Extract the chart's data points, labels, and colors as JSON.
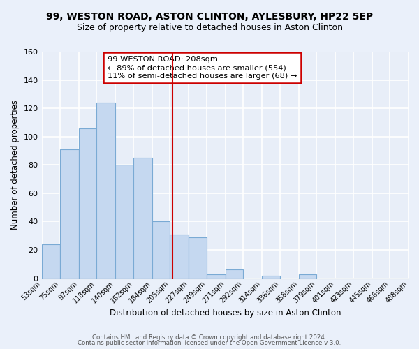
{
  "title": "99, WESTON ROAD, ASTON CLINTON, AYLESBURY, HP22 5EP",
  "subtitle": "Size of property relative to detached houses in Aston Clinton",
  "xlabel": "Distribution of detached houses by size in Aston Clinton",
  "ylabel": "Number of detached properties",
  "bar_color": "#c5d8f0",
  "bar_edge_color": "#7aaad4",
  "background_color": "#e8eef8",
  "grid_color": "#ffffff",
  "bin_labels": [
    "53sqm",
    "75sqm",
    "97sqm",
    "118sqm",
    "140sqm",
    "162sqm",
    "184sqm",
    "205sqm",
    "227sqm",
    "249sqm",
    "271sqm",
    "292sqm",
    "314sqm",
    "336sqm",
    "358sqm",
    "379sqm",
    "401sqm",
    "423sqm",
    "445sqm",
    "466sqm",
    "488sqm"
  ],
  "bar_values": [
    24,
    91,
    106,
    124,
    80,
    85,
    40,
    31,
    29,
    3,
    6,
    0,
    2,
    0,
    3,
    0,
    0,
    0,
    0,
    0
  ],
  "bin_edges": [
    53,
    75,
    97,
    118,
    140,
    162,
    184,
    205,
    227,
    249,
    271,
    292,
    314,
    336,
    358,
    379,
    401,
    423,
    445,
    466,
    488
  ],
  "property_size": 208,
  "vline_color": "#cc0000",
  "annotation_box_color": "#cc0000",
  "annotation_text": "99 WESTON ROAD: 208sqm",
  "annotation_line1": "← 89% of detached houses are smaller (554)",
  "annotation_line2": "11% of semi-detached houses are larger (68) →",
  "ylim": [
    0,
    160
  ],
  "yticks": [
    0,
    20,
    40,
    60,
    80,
    100,
    120,
    140,
    160
  ],
  "footer1": "Contains HM Land Registry data © Crown copyright and database right 2024.",
  "footer2": "Contains public sector information licensed under the Open Government Licence v 3.0.",
  "title_fontsize": 10,
  "subtitle_fontsize": 9,
  "title_fontweight": "bold"
}
